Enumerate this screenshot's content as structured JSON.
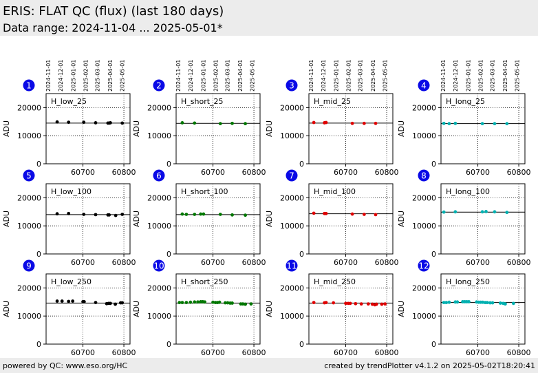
{
  "header": {
    "title": "ERIS: FLAT QC (flux) (last 180 days)",
    "subtitle": "Data range: 2024-11-04 ... 2025-05-01*"
  },
  "footer": {
    "left": "powered by QC: www.eso.org/HC",
    "right": "created by trendPlotter v4.1.2 on 2025-05-02T18:20:41"
  },
  "chart_data": {
    "type": "scatter",
    "ylabel": "ADU",
    "xlim": [
      60610,
      60815
    ],
    "ylim": [
      0,
      25000
    ],
    "x_ticks": [
      60700,
      60800
    ],
    "y_ticks": [
      0,
      10000,
      20000
    ],
    "date_ticks": [
      {
        "label": "2024-11-01",
        "mjd": 60615
      },
      {
        "label": "2024-12-01",
        "mjd": 60645
      },
      {
        "label": "2025-01-01",
        "mjd": 60676
      },
      {
        "label": "2025-02-01",
        "mjd": 60707
      },
      {
        "label": "2025-03-01",
        "mjd": 60735
      },
      {
        "label": "2025-04-01",
        "mjd": 60766
      },
      {
        "label": "2025-05-01",
        "mjd": 60796
      }
    ],
    "grid": true,
    "panels": [
      {
        "index": "1",
        "label": "H_low_25",
        "color": "#000000",
        "ref": 14500,
        "points": [
          [
            60637,
            14900
          ],
          [
            60665,
            14800
          ],
          [
            60702,
            14800
          ],
          [
            60731,
            14600
          ],
          [
            60761,
            14500
          ],
          [
            60764,
            14500
          ],
          [
            60767,
            14600
          ],
          [
            60796,
            14500
          ]
        ]
      },
      {
        "index": "2",
        "label": "H_short_25",
        "color": "#007700",
        "ref": 14400,
        "points": [
          [
            60625,
            14600
          ],
          [
            60655,
            14500
          ],
          [
            60718,
            14300
          ],
          [
            60747,
            14400
          ],
          [
            60779,
            14300
          ]
        ]
      },
      {
        "index": "3",
        "label": "H_mid_25",
        "color": "#e00000",
        "ref": 14500,
        "points": [
          [
            60622,
            14700
          ],
          [
            60648,
            14600
          ],
          [
            60652,
            14700
          ],
          [
            60716,
            14400
          ],
          [
            60745,
            14400
          ],
          [
            60773,
            14400
          ]
        ]
      },
      {
        "index": "4",
        "label": "H_long_25",
        "color": "#00b0b0",
        "ref": 14300,
        "points": [
          [
            60617,
            14400
          ],
          [
            60630,
            14300
          ],
          [
            60645,
            14400
          ],
          [
            60711,
            14300
          ],
          [
            60741,
            14300
          ],
          [
            60771,
            14300
          ]
        ]
      },
      {
        "index": "5",
        "label": "H_low_100",
        "color": "#000000",
        "ref": 14000,
        "points": [
          [
            60637,
            14300
          ],
          [
            60665,
            14400
          ],
          [
            60702,
            14100
          ],
          [
            60731,
            14000
          ],
          [
            60761,
            13900
          ],
          [
            60764,
            13900
          ],
          [
            60780,
            13700
          ],
          [
            60796,
            14100
          ]
        ]
      },
      {
        "index": "6",
        "label": "H_short_100",
        "color": "#007700",
        "ref": 14000,
        "points": [
          [
            60625,
            14200
          ],
          [
            60635,
            14100
          ],
          [
            60655,
            14100
          ],
          [
            60670,
            14200
          ],
          [
            60677,
            14200
          ],
          [
            60718,
            14100
          ],
          [
            60747,
            13900
          ],
          [
            60779,
            13800
          ]
        ]
      },
      {
        "index": "7",
        "label": "H_mid_100",
        "color": "#e00000",
        "ref": 14300,
        "points": [
          [
            60622,
            14500
          ],
          [
            60648,
            14400
          ],
          [
            60652,
            14400
          ],
          [
            60716,
            14200
          ],
          [
            60745,
            14100
          ],
          [
            60773,
            14000
          ]
        ]
      },
      {
        "index": "8",
        "label": "H_long_100",
        "color": "#00b0b0",
        "ref": 14900,
        "points": [
          [
            60617,
            14900
          ],
          [
            60645,
            15000
          ],
          [
            60711,
            15000
          ],
          [
            60720,
            15100
          ],
          [
            60741,
            15000
          ],
          [
            60771,
            14800
          ]
        ]
      },
      {
        "index": "9",
        "label": "H_low_250",
        "color": "#000000",
        "ref": 14600,
        "points": [
          [
            60637,
            15300
          ],
          [
            60649,
            15300
          ],
          [
            60665,
            15200
          ],
          [
            60675,
            15300
          ],
          [
            60700,
            15100
          ],
          [
            60703,
            15100
          ],
          [
            60731,
            14800
          ],
          [
            60758,
            14400
          ],
          [
            60763,
            14500
          ],
          [
            60767,
            14500
          ],
          [
            60779,
            14200
          ],
          [
            60792,
            14700
          ],
          [
            60796,
            14700
          ]
        ]
      },
      {
        "index": "10",
        "label": "H_short_250",
        "color": "#007700",
        "ref": 14600,
        "points": [
          [
            60618,
            14800
          ],
          [
            60625,
            14800
          ],
          [
            60635,
            14800
          ],
          [
            60645,
            14900
          ],
          [
            60655,
            15000
          ],
          [
            60663,
            15000
          ],
          [
            60670,
            15100
          ],
          [
            60675,
            15100
          ],
          [
            60680,
            15000
          ],
          [
            60700,
            14900
          ],
          [
            60706,
            14800
          ],
          [
            60711,
            14800
          ],
          [
            60716,
            14900
          ],
          [
            60730,
            14700
          ],
          [
            60736,
            14700
          ],
          [
            60742,
            14600
          ],
          [
            60747,
            14600
          ],
          [
            60768,
            14300
          ],
          [
            60773,
            14300
          ],
          [
            60779,
            14200
          ],
          [
            60793,
            14300
          ]
        ]
      },
      {
        "index": "11",
        "label": "H_mid_250",
        "color": "#e00000",
        "ref": 14600,
        "points": [
          [
            60622,
            14800
          ],
          [
            60648,
            14700
          ],
          [
            60652,
            14800
          ],
          [
            60670,
            14700
          ],
          [
            60700,
            14500
          ],
          [
            60706,
            14500
          ],
          [
            60711,
            14500
          ],
          [
            60724,
            14400
          ],
          [
            60738,
            14300
          ],
          [
            60755,
            14300
          ],
          [
            60765,
            14200
          ],
          [
            60771,
            14000
          ],
          [
            60775,
            14200
          ],
          [
            60788,
            14200
          ],
          [
            60796,
            14300
          ]
        ]
      },
      {
        "index": "12",
        "label": "H_long_250",
        "color": "#00b0b0",
        "ref": 14800,
        "points": [
          [
            60617,
            14800
          ],
          [
            60623,
            14800
          ],
          [
            60630,
            14900
          ],
          [
            60645,
            15000
          ],
          [
            60650,
            15000
          ],
          [
            60663,
            15100
          ],
          [
            60668,
            15100
          ],
          [
            60673,
            15100
          ],
          [
            60678,
            15100
          ],
          [
            60697,
            15000
          ],
          [
            60702,
            14900
          ],
          [
            60707,
            14900
          ],
          [
            60712,
            14900
          ],
          [
            60718,
            14800
          ],
          [
            60723,
            14800
          ],
          [
            60730,
            14700
          ],
          [
            60736,
            14700
          ],
          [
            60755,
            14600
          ],
          [
            60762,
            14500
          ],
          [
            60767,
            14300
          ],
          [
            60787,
            14500
          ]
        ]
      }
    ]
  }
}
